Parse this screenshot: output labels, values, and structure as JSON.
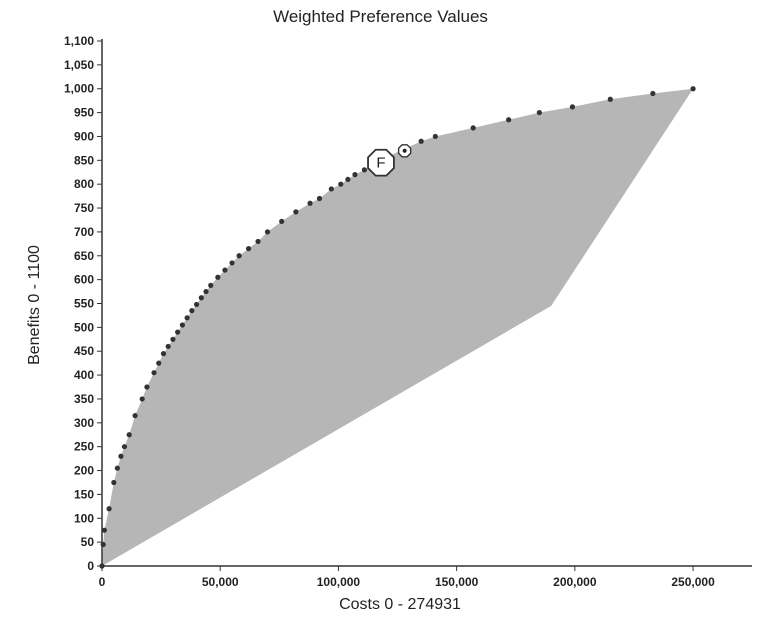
{
  "chart_data": {
    "type": "area",
    "title": "Weighted Preference Values",
    "xlabel": "Costs 0 - 274931",
    "ylabel": "Benefits 0 - 1100",
    "xlim": [
      0,
      274931
    ],
    "ylim": [
      0,
      1100
    ],
    "yticks": [
      0,
      50,
      100,
      150,
      200,
      250,
      300,
      350,
      400,
      450,
      500,
      550,
      600,
      650,
      700,
      750,
      800,
      850,
      900,
      950,
      1000,
      1050,
      1100
    ],
    "ytick_labels": [
      "0",
      "50",
      "100",
      "150",
      "200",
      "250",
      "300",
      "350",
      "400",
      "450",
      "500",
      "550",
      "600",
      "650",
      "700",
      "750",
      "800",
      "850",
      "900",
      "950",
      "1,000",
      "1,050",
      "1,100"
    ],
    "xticks": [
      0,
      50000,
      100000,
      150000,
      200000,
      250000
    ],
    "xtick_labels": [
      "0",
      "50,000",
      "100,000",
      "150,000",
      "200,000",
      "250,000"
    ],
    "grid": false,
    "fill_color": "#b6b6b6",
    "point_color": "#333333",
    "lower_boundary": [
      {
        "x": 0,
        "y": 0
      },
      {
        "x": 190000,
        "y": 545
      },
      {
        "x": 250000,
        "y": 1000
      }
    ],
    "efficient_frontier": [
      {
        "x": 0,
        "y": 0
      },
      {
        "x": 500,
        "y": 45
      },
      {
        "x": 1000,
        "y": 75
      },
      {
        "x": 3000,
        "y": 120
      },
      {
        "x": 5000,
        "y": 175
      },
      {
        "x": 6500,
        "y": 205
      },
      {
        "x": 8000,
        "y": 230
      },
      {
        "x": 9500,
        "y": 250
      },
      {
        "x": 11500,
        "y": 275
      },
      {
        "x": 14000,
        "y": 315
      },
      {
        "x": 17000,
        "y": 350
      },
      {
        "x": 19000,
        "y": 375
      },
      {
        "x": 22000,
        "y": 405
      },
      {
        "x": 24000,
        "y": 425
      },
      {
        "x": 26000,
        "y": 445
      },
      {
        "x": 28000,
        "y": 460
      },
      {
        "x": 30000,
        "y": 475
      },
      {
        "x": 32000,
        "y": 490
      },
      {
        "x": 34000,
        "y": 505
      },
      {
        "x": 36000,
        "y": 520
      },
      {
        "x": 38000,
        "y": 535
      },
      {
        "x": 40000,
        "y": 548
      },
      {
        "x": 42000,
        "y": 562
      },
      {
        "x": 44000,
        "y": 575
      },
      {
        "x": 46000,
        "y": 588
      },
      {
        "x": 49000,
        "y": 605
      },
      {
        "x": 52000,
        "y": 620
      },
      {
        "x": 55000,
        "y": 635
      },
      {
        "x": 58000,
        "y": 650
      },
      {
        "x": 62000,
        "y": 665
      },
      {
        "x": 66000,
        "y": 680
      },
      {
        "x": 70000,
        "y": 700
      },
      {
        "x": 76000,
        "y": 722
      },
      {
        "x": 82000,
        "y": 742
      },
      {
        "x": 88000,
        "y": 760
      },
      {
        "x": 92000,
        "y": 770
      },
      {
        "x": 97000,
        "y": 790
      },
      {
        "x": 101000,
        "y": 800
      },
      {
        "x": 104000,
        "y": 810
      },
      {
        "x": 107000,
        "y": 820
      },
      {
        "x": 111000,
        "y": 830
      },
      {
        "x": 116000,
        "y": 845
      },
      {
        "x": 121000,
        "y": 858
      },
      {
        "x": 127000,
        "y": 872
      },
      {
        "x": 135000,
        "y": 890
      },
      {
        "x": 141000,
        "y": 900
      },
      {
        "x": 157000,
        "y": 918
      },
      {
        "x": 172000,
        "y": 935
      },
      {
        "x": 185000,
        "y": 950
      },
      {
        "x": 199000,
        "y": 962
      },
      {
        "x": 215000,
        "y": 978
      },
      {
        "x": 233000,
        "y": 990
      },
      {
        "x": 250000,
        "y": 1000
      }
    ],
    "annotations": [
      {
        "label": "F",
        "x": 118000,
        "y": 845
      },
      {
        "label": "",
        "x": 128000,
        "y": 870
      }
    ]
  }
}
